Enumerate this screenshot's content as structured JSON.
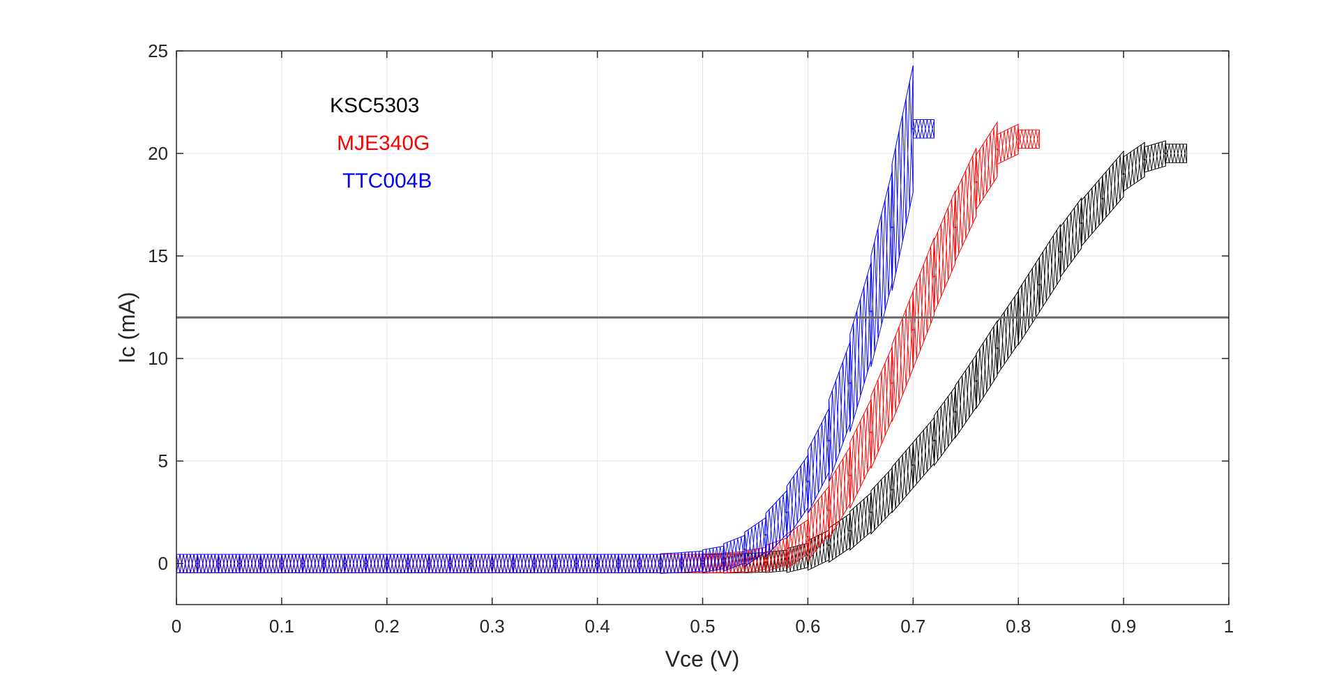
{
  "chart_data": {
    "type": "line",
    "title": "",
    "xlabel": "Vce (V)",
    "ylabel": "Ic (mA)",
    "xlim": [
      0,
      1
    ],
    "ylim": [
      -2,
      25
    ],
    "xticks": [
      0,
      0.1,
      0.2,
      0.3,
      0.4,
      0.5,
      0.6,
      0.7,
      0.8,
      0.9,
      1
    ],
    "xtick_labels": [
      "0",
      "0.1",
      "0.2",
      "0.3",
      "0.4",
      "0.5",
      "0.6",
      "0.7",
      "0.8",
      "0.9",
      "1"
    ],
    "yticks": [
      0,
      5,
      10,
      15,
      20,
      25
    ],
    "ytick_labels": [
      "0",
      "5",
      "10",
      "15",
      "20",
      "25"
    ],
    "grid": true,
    "legend_placement": "top-left",
    "reference_line": {
      "y": 12,
      "color": "#666666"
    },
    "step_x": 0.02,
    "series": [
      {
        "name": "KSC5303",
        "color": "#000000",
        "x": [
          0,
          0.02,
          0.04,
          0.06,
          0.08,
          0.1,
          0.12,
          0.14,
          0.16,
          0.18,
          0.2,
          0.22,
          0.24,
          0.26,
          0.28,
          0.3,
          0.32,
          0.34,
          0.36,
          0.38,
          0.4,
          0.42,
          0.44,
          0.46,
          0.48,
          0.5,
          0.52,
          0.54,
          0.56,
          0.58,
          0.6,
          0.62,
          0.64,
          0.66,
          0.68,
          0.7,
          0.72,
          0.74,
          0.76,
          0.78,
          0.8,
          0.82,
          0.84,
          0.86,
          0.88,
          0.9,
          0.92,
          0.94
        ],
        "y": [
          0,
          0,
          0,
          0,
          0,
          0,
          0,
          0,
          0,
          0,
          0,
          0,
          0,
          0,
          0,
          0,
          0,
          0,
          0,
          0,
          0,
          0,
          0,
          0,
          0,
          0,
          0,
          0.02,
          0.06,
          0.15,
          0.4,
          0.9,
          1.6,
          2.5,
          3.6,
          4.8,
          6.0,
          7.4,
          8.9,
          10.5,
          12.0,
          13.6,
          15.2,
          16.6,
          17.8,
          19.0,
          19.7,
          20.0
        ]
      },
      {
        "name": "MJE340G",
        "color": "#ff0000",
        "x": [
          0,
          0.02,
          0.04,
          0.06,
          0.08,
          0.1,
          0.12,
          0.14,
          0.16,
          0.18,
          0.2,
          0.22,
          0.24,
          0.26,
          0.28,
          0.3,
          0.32,
          0.34,
          0.36,
          0.38,
          0.4,
          0.42,
          0.44,
          0.46,
          0.48,
          0.5,
          0.52,
          0.54,
          0.56,
          0.58,
          0.6,
          0.62,
          0.64,
          0.66,
          0.68,
          0.7,
          0.72,
          0.74,
          0.76,
          0.78,
          0.8
        ],
        "y": [
          0,
          0,
          0,
          0,
          0,
          0,
          0,
          0,
          0,
          0,
          0,
          0,
          0,
          0,
          0,
          0,
          0,
          0,
          0,
          0,
          0,
          0,
          0,
          0,
          0,
          0,
          0.03,
          0.1,
          0.25,
          0.6,
          1.3,
          2.6,
          4.3,
          6.4,
          8.8,
          11.4,
          14.0,
          16.4,
          18.6,
          20.2,
          20.7
        ]
      },
      {
        "name": "TTC004B",
        "color": "#0000ff",
        "x": [
          0,
          0.02,
          0.04,
          0.06,
          0.08,
          0.1,
          0.12,
          0.14,
          0.16,
          0.18,
          0.2,
          0.22,
          0.24,
          0.26,
          0.28,
          0.3,
          0.32,
          0.34,
          0.36,
          0.38,
          0.4,
          0.42,
          0.44,
          0.46,
          0.48,
          0.5,
          0.52,
          0.54,
          0.56,
          0.58,
          0.6,
          0.62,
          0.64,
          0.66,
          0.68,
          0.7
        ],
        "y": [
          0,
          0,
          0,
          0,
          0,
          0,
          0,
          0,
          0,
          0,
          0,
          0,
          0,
          0,
          0,
          0,
          0,
          0,
          0,
          0,
          0,
          0,
          0,
          0,
          0.05,
          0.12,
          0.3,
          0.7,
          1.4,
          2.5,
          4.0,
          6.0,
          8.8,
          12.3,
          16.4,
          21.2
        ]
      }
    ]
  }
}
